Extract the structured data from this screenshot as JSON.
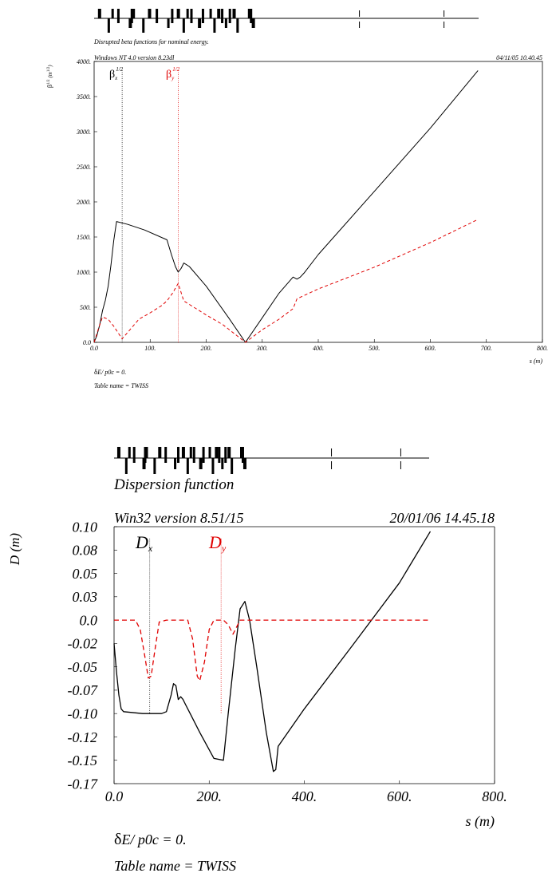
{
  "colors": {
    "black": "#000000",
    "red": "#e00000",
    "background": "#ffffff"
  },
  "chart_data": [
    {
      "type": "line",
      "title": "Disrupted beta functions for nominal energy.",
      "version": "Windows NT 4.0 version 8.23dl",
      "date": "04/11/05  10.40.45",
      "xlabel": "s (m)",
      "ylabel_main": "β",
      "ylabel_sup": "1/2",
      "ylabel_unit": "(m",
      "ylabel_unit_sup": "1/2",
      "ylabel_close": ")",
      "xlim": [
        0,
        800
      ],
      "ylim": [
        0,
        4000
      ],
      "xticks": [
        "0.0",
        "100.",
        "200.",
        "300.",
        "400.",
        "500.",
        "600.",
        "700.",
        "800."
      ],
      "yticks": [
        "0.0",
        "500.",
        "1000.",
        "1500.",
        "2000.",
        "2500.",
        "3000.",
        "3500.",
        "4000."
      ],
      "legend_x": {
        "symbol": "β",
        "sub": "x",
        "sup": "1/2",
        "marker_s": 50
      },
      "legend_y": {
        "symbol": "β",
        "sub": "y",
        "sup": "1/2",
        "marker_s": 150
      },
      "footer_line1": "δ",
      "footer_line1_rest": "E/ p0c  =  0.",
      "footer_line2": "Table name = TWISS",
      "grid": false,
      "series": [
        {
          "color": "#000000",
          "dash": false,
          "x": [
            0,
            5,
            10,
            15,
            20,
            25,
            30,
            35,
            40,
            60,
            90,
            130,
            138,
            145,
            150,
            155,
            160,
            170,
            200,
            240,
            270,
            300,
            330,
            355,
            362,
            368,
            375,
            400,
            500,
            600,
            685
          ],
          "y": [
            0,
            100,
            250,
            450,
            600,
            800,
            1100,
            1450,
            1720,
            1680,
            1600,
            1460,
            1250,
            1080,
            1000,
            1050,
            1130,
            1080,
            800,
            350,
            0,
            350,
            700,
            930,
            900,
            930,
            990,
            1250,
            2150,
            3050,
            3870
          ]
        },
        {
          "color": "#e00000",
          "dash": true,
          "x": [
            0,
            8,
            15,
            25,
            35,
            50,
            65,
            80,
            100,
            120,
            130,
            140,
            150,
            160,
            170,
            200,
            230,
            270,
            300,
            330,
            355,
            362,
            400,
            500,
            600,
            685
          ],
          "y": [
            0,
            200,
            360,
            330,
            230,
            50,
            190,
            330,
            420,
            520,
            590,
            700,
            840,
            590,
            540,
            390,
            250,
            0,
            180,
            330,
            480,
            620,
            760,
            1070,
            1420,
            1750
          ]
        }
      ]
    },
    {
      "type": "line",
      "title": "Dispersion function",
      "version": "Win32 version 8.51/15",
      "date": "20/01/06  14.45.18",
      "xlabel": "s (m)",
      "ylabel": "D (m)",
      "xlim": [
        0,
        800
      ],
      "ylim": [
        -0.175,
        0.1
      ],
      "xticks": [
        "0.0",
        "200.",
        "400.",
        "600.",
        "800."
      ],
      "yticks": [
        "0.10",
        "0.08",
        "0.05",
        "0.03",
        "0.0",
        "-0.02",
        "-0.05",
        "-0.07",
        "-0.10",
        "-0.12",
        "-0.15",
        "-0.17"
      ],
      "legend_x": {
        "symbol": "D",
        "sub": "x",
        "marker_s": 75
      },
      "legend_y": {
        "symbol": "D",
        "sub": "y",
        "marker_s": 225
      },
      "footer_line1": "δ",
      "footer_line1_rest": "E/ p0c  =  0.",
      "footer_line2": "Table name = TWISS",
      "grid": false,
      "series": [
        {
          "color": "#000000",
          "dash": false,
          "x": [
            0,
            5,
            10,
            15,
            20,
            60,
            100,
            110,
            120,
            125,
            130,
            135,
            140,
            145,
            150,
            160,
            180,
            210,
            230,
            240,
            255,
            265,
            275,
            285,
            300,
            320,
            335,
            340,
            345,
            400,
            500,
            600,
            665
          ],
          "y": [
            -0.025,
            -0.055,
            -0.08,
            -0.095,
            -0.098,
            -0.1,
            -0.1,
            -0.098,
            -0.08,
            -0.068,
            -0.07,
            -0.085,
            -0.082,
            -0.085,
            -0.09,
            -0.1,
            -0.12,
            -0.148,
            -0.15,
            -0.1,
            -0.03,
            0.012,
            0.02,
            0.0,
            -0.05,
            -0.12,
            -0.162,
            -0.16,
            -0.135,
            -0.095,
            -0.028,
            0.04,
            0.095
          ]
        },
        {
          "color": "#e00000",
          "dash": true,
          "x": [
            0,
            45,
            55,
            65,
            72,
            78,
            85,
            95,
            110,
            155,
            165,
            175,
            180,
            190,
            200,
            210,
            230,
            240,
            250,
            265,
            300,
            400,
            500,
            600,
            665
          ],
          "y": [
            0,
            0,
            -0.01,
            -0.04,
            -0.062,
            -0.06,
            -0.035,
            -0.002,
            0,
            0,
            -0.02,
            -0.06,
            -0.065,
            -0.045,
            -0.01,
            0,
            0,
            -0.005,
            -0.015,
            0,
            0,
            0,
            0,
            0,
            0
          ]
        }
      ]
    }
  ]
}
